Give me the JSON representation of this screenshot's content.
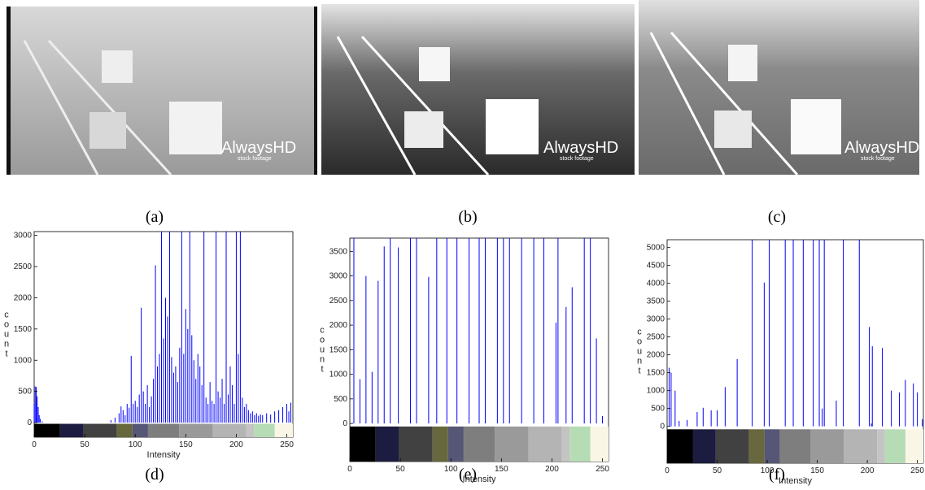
{
  "photos": [
    {
      "watermark": "AlwaysHD",
      "sub": "stock footage"
    },
    {
      "watermark": "AlwaysHD",
      "sub": "stock footage"
    },
    {
      "watermark": "AlwaysHD",
      "sub": "stock footage"
    }
  ],
  "captions": [
    "(a)",
    "(b)",
    "(c)",
    "(d)",
    "(e)",
    "(f)"
  ],
  "chart_data": [
    {
      "type": "bar",
      "color": "#0000ff",
      "xlabel": "Intensity",
      "ylabel": "count",
      "x": [
        0,
        1,
        2,
        3,
        4,
        5,
        6,
        8,
        76,
        80,
        84,
        86,
        88,
        90,
        92,
        94,
        96,
        98,
        100,
        102,
        104,
        106,
        108,
        110,
        112,
        114,
        116,
        118,
        120,
        122,
        124,
        126,
        128,
        130,
        132,
        134,
        136,
        138,
        140,
        142,
        144,
        146,
        148,
        150,
        152,
        154,
        156,
        158,
        160,
        162,
        164,
        166,
        168,
        170,
        172,
        174,
        176,
        178,
        180,
        182,
        184,
        186,
        188,
        190,
        192,
        194,
        196,
        198,
        200,
        202,
        204,
        206,
        208,
        210,
        212,
        214,
        216,
        218,
        220,
        222,
        224,
        226,
        230,
        234,
        238,
        242,
        246,
        250,
        252,
        254
      ],
      "values": [
        300,
        580,
        570,
        420,
        250,
        120,
        60,
        20,
        40,
        80,
        150,
        260,
        200,
        120,
        300,
        240,
        1070,
        300,
        350,
        250,
        450,
        1840,
        500,
        300,
        600,
        250,
        420,
        700,
        2520,
        900,
        1100,
        3060,
        1350,
        2000,
        1700,
        3060,
        1050,
        800,
        900,
        650,
        1200,
        3060,
        1100,
        1820,
        1500,
        3060,
        1400,
        1000,
        700,
        1100,
        900,
        600,
        3060,
        400,
        300,
        650,
        350,
        300,
        3060,
        500,
        400,
        700,
        300,
        3060,
        450,
        900,
        600,
        300,
        3060,
        1100,
        3060,
        400,
        250,
        300,
        200,
        150,
        180,
        120,
        150,
        110,
        130,
        120,
        150,
        130,
        180,
        200,
        250,
        300,
        180,
        320
      ],
      "xlim": [
        0,
        256
      ],
      "ylim": [
        -233,
        3060
      ],
      "xticks": [
        0,
        50,
        100,
        150,
        200,
        250
      ],
      "yticks": [
        0,
        500,
        1000,
        1500,
        2000,
        2500,
        3000
      ]
    },
    {
      "type": "bar",
      "color": "#0000ff",
      "xlabel": "Intensity",
      "ylabel": "count",
      "x": [
        4,
        10,
        16,
        22,
        28,
        34,
        40,
        48,
        60,
        66,
        78,
        86,
        96,
        106,
        118,
        128,
        134,
        146,
        152,
        158,
        170,
        182,
        192,
        204,
        206,
        214,
        220,
        232,
        238,
        244,
        250
      ],
      "values": [
        3770,
        900,
        3000,
        1050,
        2900,
        3600,
        3770,
        3580,
        3770,
        3770,
        2980,
        3770,
        3770,
        3770,
        3770,
        3770,
        3770,
        3770,
        3770,
        3770,
        3770,
        3770,
        3770,
        2050,
        3770,
        2370,
        2770,
        3770,
        3770,
        1730,
        150
      ],
      "xlim": [
        0,
        256
      ],
      "ylim": [
        -775,
        3770
      ],
      "xticks": [
        0,
        50,
        100,
        150,
        200,
        250
      ],
      "yticks": [
        0,
        500,
        1000,
        1500,
        2000,
        2500,
        3000,
        3500
      ]
    },
    {
      "type": "bar",
      "color": "#0000ff",
      "xlabel": "Intensity",
      "ylabel": "count",
      "x": [
        2,
        4,
        8,
        12,
        20,
        30,
        36,
        44,
        50,
        58,
        70,
        85,
        97,
        102,
        118,
        126,
        136,
        146,
        152,
        155,
        157,
        169,
        176,
        192,
        202,
        204,
        205,
        215,
        224,
        232,
        238,
        246,
        250,
        255
      ],
      "values": [
        1640,
        1500,
        1000,
        150,
        180,
        400,
        520,
        450,
        450,
        1100,
        1880,
        5220,
        4020,
        5220,
        5220,
        5220,
        5220,
        5220,
        5220,
        500,
        5220,
        720,
        5220,
        5220,
        2780,
        80,
        2240,
        2190,
        1000,
        950,
        1300,
        1200,
        950,
        200
      ],
      "xlim": [
        0,
        256
      ],
      "ylim": [
        -1030,
        5220
      ],
      "xticks": [
        0,
        50,
        100,
        150,
        200,
        250
      ],
      "yticks": [
        0,
        500,
        1000,
        1500,
        2000,
        2500,
        3000,
        3500,
        4000,
        4500,
        5000
      ]
    }
  ]
}
